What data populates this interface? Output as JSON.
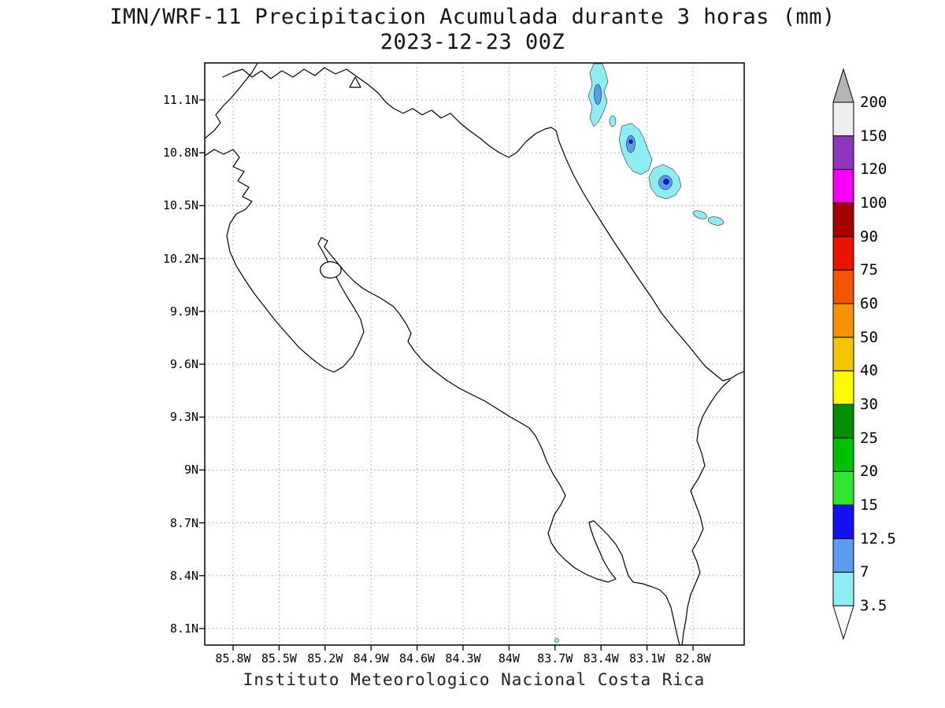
{
  "title": {
    "line1": "IMN/WRF-11 Precipitacion Acumulada durante 3 horas (mm)",
    "line2": "2023-12-23 00Z"
  },
  "footer": {
    "caption": "Instituto Meteorologico Nacional Costa Rica"
  },
  "map": {
    "y_ticks": [
      "11.1N",
      "10.8N",
      "10.5N",
      "10.2N",
      "9.9N",
      "9.6N",
      "9.3N",
      "9N",
      "8.7N",
      "8.4N",
      "8.1N"
    ],
    "x_ticks": [
      "85.8W",
      "85.5W",
      "85.2W",
      "84.9W",
      "84.6W",
      "84.3W",
      "84W",
      "83.7W",
      "83.4W",
      "83.1W",
      "82.8W"
    ],
    "frame_color": "#000000",
    "grid_color": "#9a9a9a",
    "coast_color": "#000000"
  },
  "colorbar": {
    "labels": [
      "3.5",
      "7",
      "12.5",
      "15",
      "20",
      "25",
      "30",
      "40",
      "50",
      "60",
      "75",
      "90",
      "100",
      "120",
      "150",
      "200"
    ],
    "box_colors": [
      "#8EEDF0",
      "#5B9BEE",
      "#1212F0",
      "#33E433",
      "#00C000",
      "#008F00",
      "#FBFB00",
      "#F5C400",
      "#F59400",
      "#F55400",
      "#E81400",
      "#A40000",
      "#F500F5",
      "#8F35C0",
      "#EFEFEF"
    ],
    "below_color": "#FFFFFF",
    "above_color": "#B5B5B5",
    "outline_color": "#000000"
  },
  "precip": {
    "light_color": "#8EEDF0",
    "mid_color": "#5B9BEE",
    "heavy_color": "#1212F0"
  }
}
